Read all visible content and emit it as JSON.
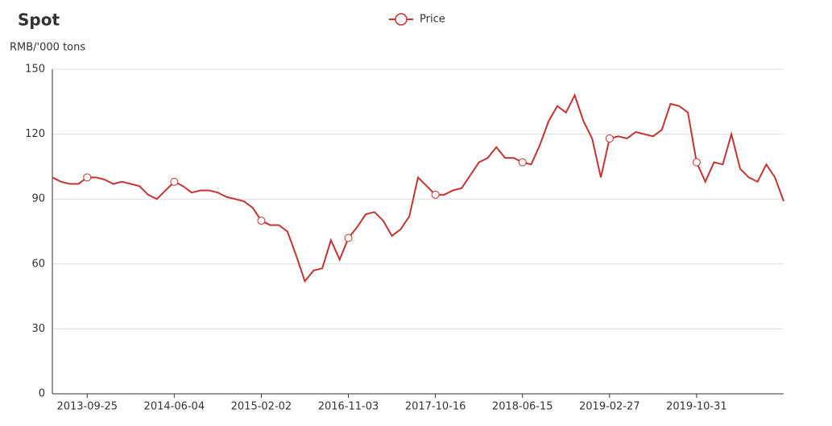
{
  "chart_data": {
    "type": "line",
    "title": "Spot",
    "y_label": "RMB/'000 tons",
    "categories": [
      null,
      null,
      null,
      null,
      "2013-09-25",
      null,
      null,
      null,
      null,
      null,
      null,
      null,
      null,
      null,
      "2014-06-04",
      null,
      null,
      null,
      null,
      null,
      null,
      null,
      null,
      null,
      "2015-02-02",
      null,
      null,
      null,
      null,
      null,
      null,
      null,
      null,
      null,
      "2016-11-03",
      null,
      null,
      null,
      null,
      null,
      null,
      null,
      null,
      null,
      "2017-10-16",
      null,
      null,
      null,
      null,
      null,
      null,
      null,
      null,
      null,
      "2018-06-15",
      null,
      null,
      null,
      null,
      null,
      null,
      null,
      null,
      null,
      "2019-02-27",
      null,
      null,
      null,
      null,
      null,
      null,
      null,
      null,
      null,
      "2019-10-31",
      null,
      null,
      null,
      null,
      null,
      null,
      null,
      null,
      null,
      null
    ],
    "series": [
      {
        "name": "Price",
        "color": "#c23531",
        "values": [
          100,
          98,
          97,
          97,
          100,
          100,
          99,
          97,
          98,
          97,
          96,
          92,
          90,
          94,
          98,
          96,
          93,
          94,
          94,
          93,
          91,
          90,
          89,
          86,
          80,
          78,
          78,
          75,
          64,
          52,
          57,
          58,
          71,
          62,
          72,
          77,
          83,
          84,
          80,
          73,
          76,
          82,
          100,
          96,
          92,
          92,
          94,
          95,
          101,
          107,
          109,
          114,
          109,
          109,
          107,
          106,
          115,
          126,
          133,
          130,
          138,
          126,
          118,
          100,
          118,
          119,
          118,
          121,
          120,
          119,
          122,
          134,
          133,
          130,
          107,
          98,
          107,
          106,
          120,
          104,
          100,
          98,
          106,
          100,
          89
        ]
      }
    ],
    "ylim": [
      0,
      150
    ],
    "yticks": [
      0,
      30,
      60,
      90,
      120,
      150
    ],
    "grid": true
  }
}
